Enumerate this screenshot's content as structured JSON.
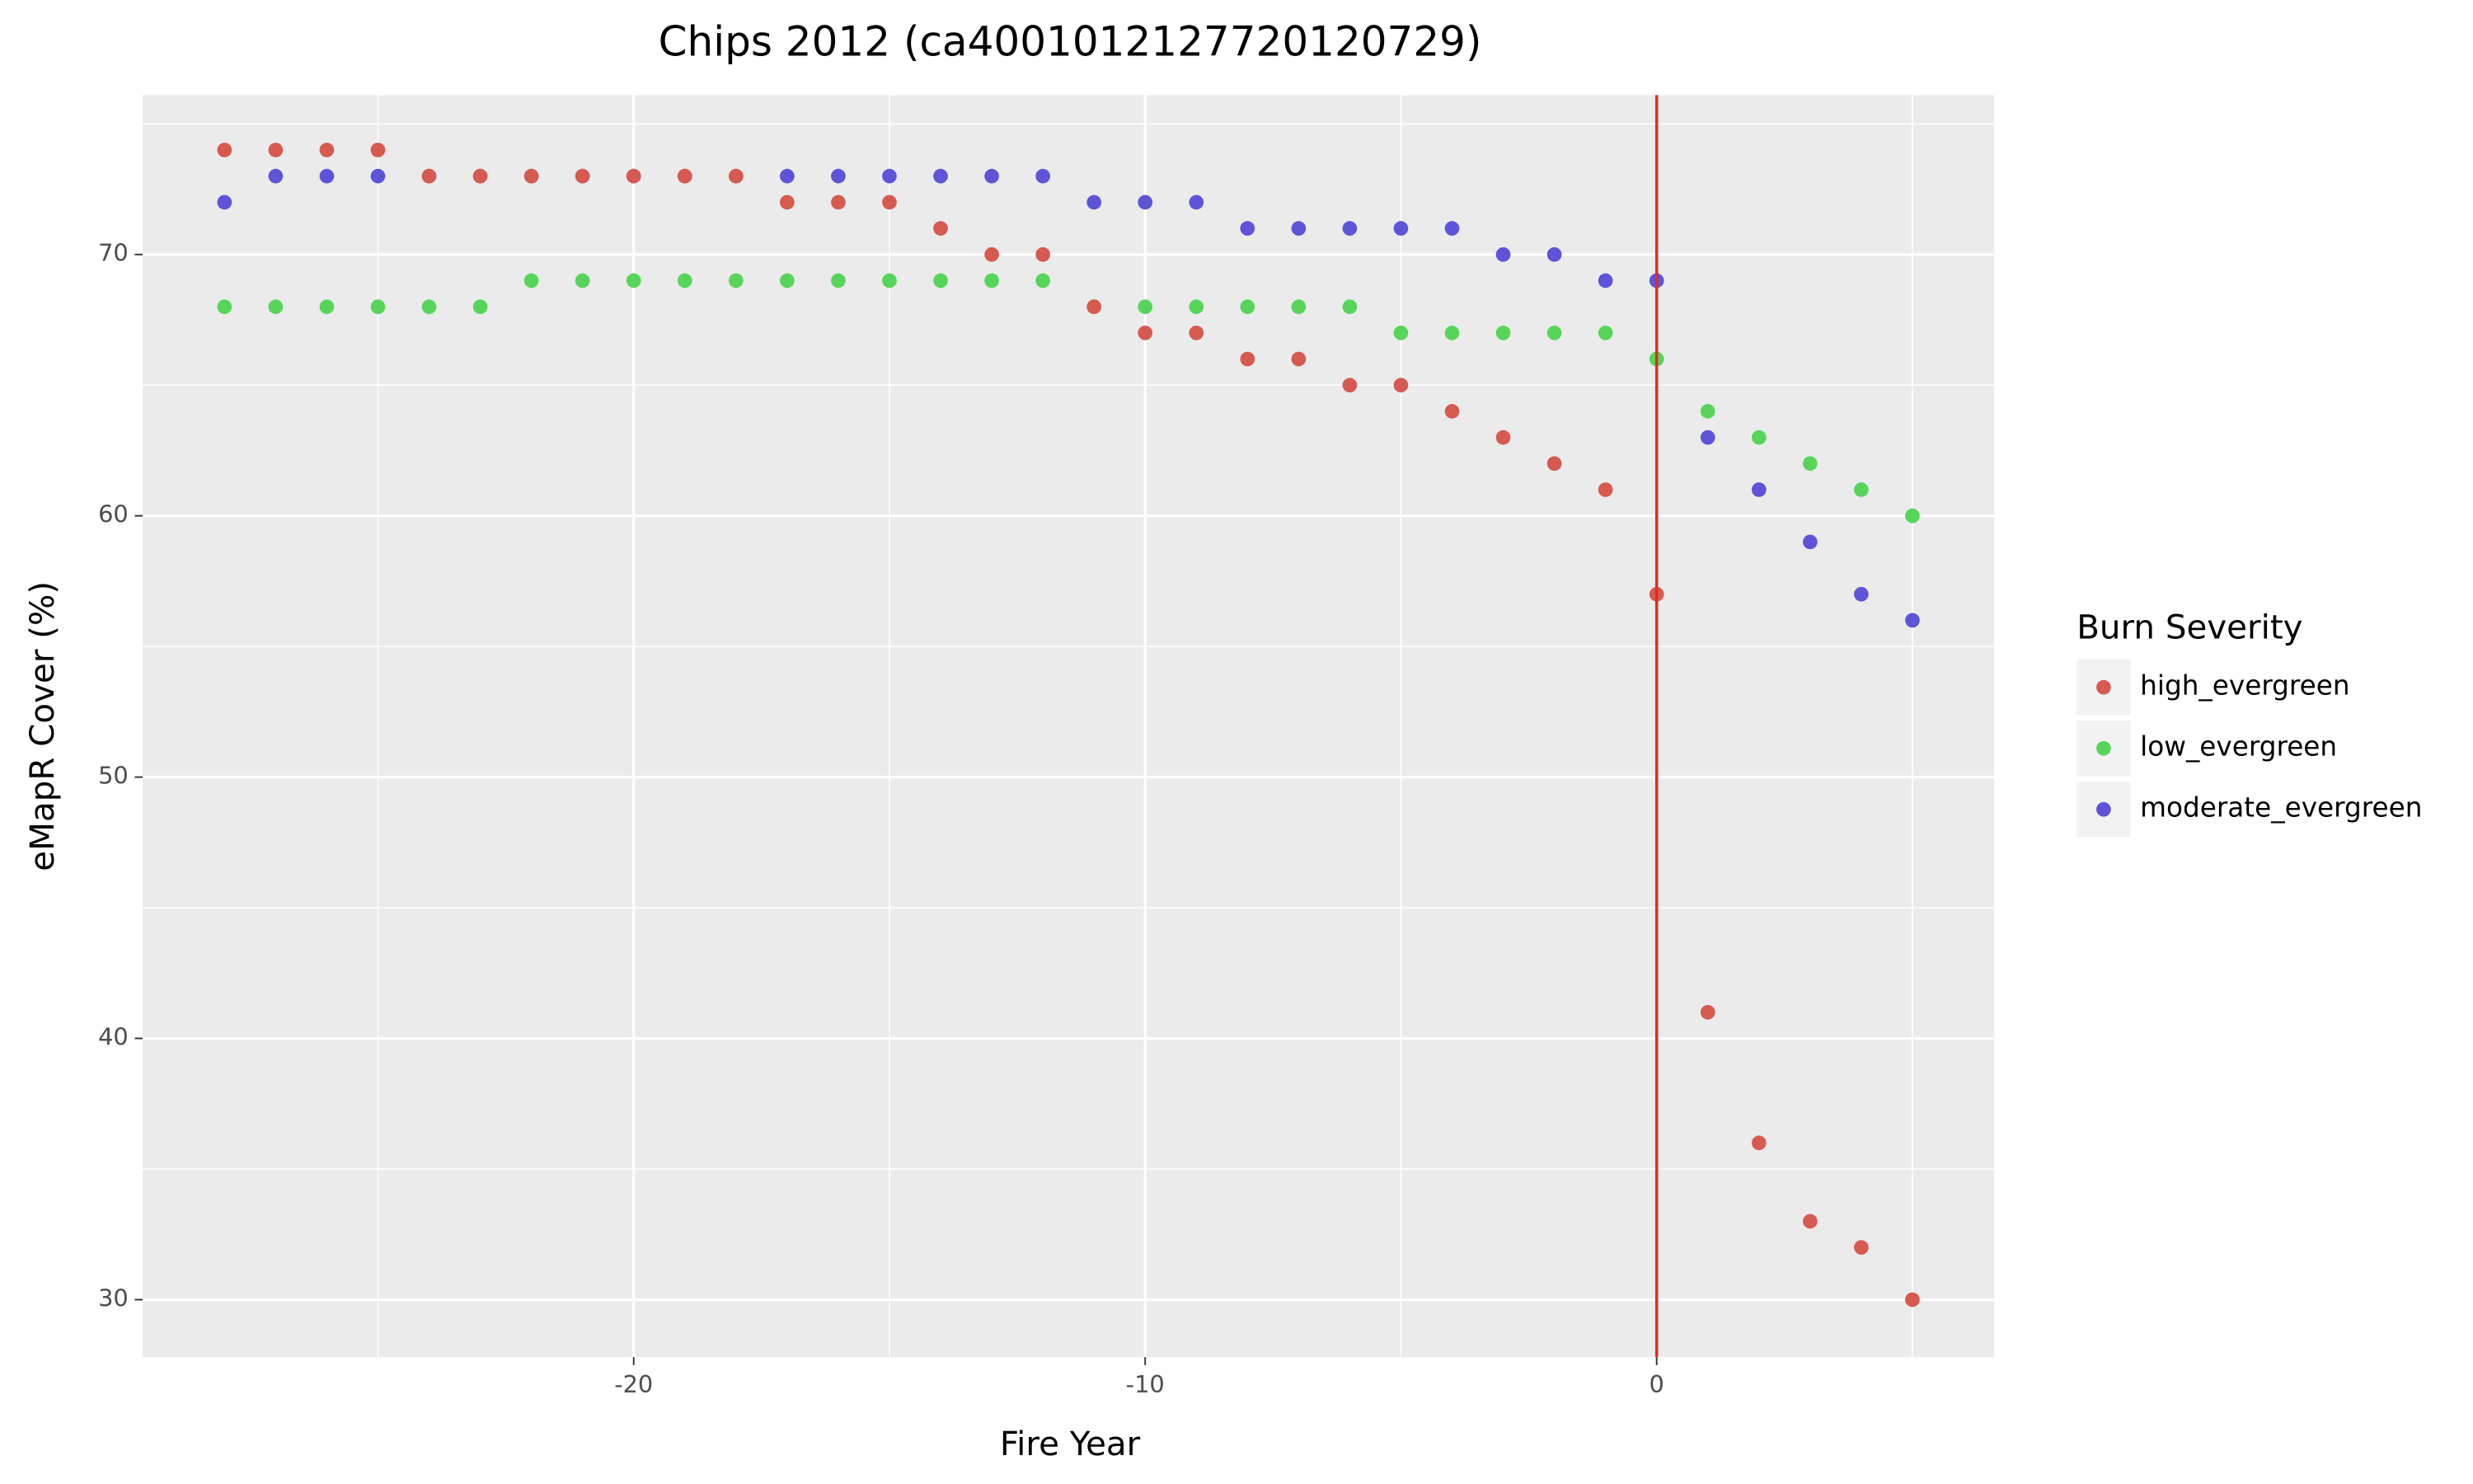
{
  "chart_data": {
    "type": "scatter",
    "title": "Chips 2012 (ca4001012127720120729)",
    "x_label": "Fire Year",
    "y_label": "eMapR Cover (%)",
    "legend_title": "Burn Severity",
    "legend_position": "right",
    "grid": true,
    "x": [
      -28,
      -27,
      -26,
      -25,
      -24,
      -23,
      -22,
      -21,
      -20,
      -19,
      -18,
      -17,
      -16,
      -15,
      -14,
      -13,
      -12,
      -11,
      -10,
      -9,
      -8,
      -7,
      -6,
      -5,
      -4,
      -3,
      -2,
      -1,
      0,
      1,
      2,
      3,
      4,
      5
    ],
    "series": [
      {
        "name": "high_evergreen",
        "color": "#d65a50",
        "values": [
          74,
          74,
          74,
          74,
          73,
          73,
          73,
          73,
          73,
          73,
          73,
          72,
          72,
          72,
          71,
          70,
          70,
          68,
          67,
          67,
          66,
          66,
          65,
          65,
          64,
          63,
          62,
          61,
          57,
          41,
          36,
          33,
          32,
          30
        ]
      },
      {
        "name": "low_evergreen",
        "color": "#57d55b",
        "values": [
          68,
          68,
          68,
          68,
          68,
          68,
          69,
          69,
          69,
          69,
          69,
          69,
          69,
          69,
          69,
          69,
          69,
          68,
          68,
          68,
          68,
          68,
          68,
          67,
          67,
          67,
          67,
          67,
          66,
          64,
          63,
          62,
          61,
          60
        ]
      },
      {
        "name": "moderate_evergreen",
        "color": "#5e54d8",
        "values": [
          72,
          73,
          73,
          73,
          73,
          73,
          73,
          73,
          73,
          73,
          73,
          73,
          73,
          73,
          73,
          73,
          73,
          72,
          72,
          72,
          71,
          71,
          71,
          71,
          71,
          70,
          70,
          69,
          69,
          63,
          61,
          59,
          57,
          56
        ]
      }
    ],
    "vline": {
      "x": 0,
      "color": "#e8271c"
    },
    "xlim": [
      -29.6,
      6.6
    ],
    "xticks": [
      -20,
      -10,
      0
    ],
    "ylim": [
      27.8,
      76.1
    ],
    "yticks": [
      30,
      40,
      50,
      60,
      70
    ]
  }
}
